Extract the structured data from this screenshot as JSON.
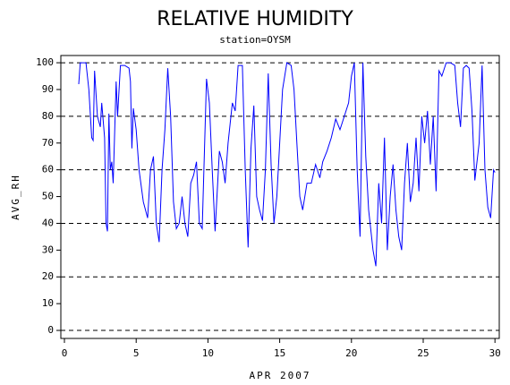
{
  "chart_data": {
    "type": "line",
    "title": "RELATIVE HUMIDITY",
    "subtitle": "station=OYSM",
    "x_label": "APR 2007",
    "y_label": "AVG_RH",
    "xlim": [
      -0.25,
      30.3
    ],
    "ylim": [
      -3,
      102.7
    ],
    "xticks": [
      0,
      5,
      10,
      15,
      20,
      25,
      30
    ],
    "yticks": [
      0,
      10,
      20,
      30,
      40,
      50,
      60,
      70,
      80,
      90,
      100
    ],
    "grid_lines": [
      0,
      20,
      40,
      60,
      80,
      100
    ],
    "grid": true,
    "series": [
      {
        "color": "#0000ff",
        "x": [
          1.0,
          1.1,
          1.5,
          1.7,
          1.9,
          2.0,
          2.1,
          2.3,
          2.5,
          2.6,
          2.8,
          2.9,
          3.0,
          3.1,
          3.2,
          3.3,
          3.4,
          3.6,
          3.7,
          3.9,
          4.2,
          4.5,
          4.6,
          4.7,
          4.8,
          5.0,
          5.2,
          5.5,
          5.8,
          6.0,
          6.2,
          6.4,
          6.6,
          6.8,
          7.0,
          7.2,
          7.4,
          7.6,
          7.8,
          8.0,
          8.2,
          8.4,
          8.6,
          8.8,
          9.0,
          9.2,
          9.4,
          9.6,
          9.9,
          10.1,
          10.3,
          10.5,
          10.8,
          11.0,
          11.2,
          11.4,
          11.7,
          11.9,
          12.1,
          12.4,
          12.6,
          12.8,
          13.0,
          13.2,
          13.4,
          13.6,
          13.8,
          14.0,
          14.2,
          14.4,
          14.6,
          14.8,
          15.0,
          15.2,
          15.5,
          15.8,
          16.0,
          16.2,
          16.4,
          16.6,
          16.9,
          17.2,
          17.5,
          17.8,
          18.0,
          18.3,
          18.6,
          18.9,
          19.2,
          19.5,
          19.8,
          20.0,
          20.2,
          20.4,
          20.6,
          20.8,
          21.0,
          21.2,
          21.5,
          21.7,
          21.9,
          22.1,
          22.3,
          22.5,
          22.7,
          22.9,
          23.1,
          23.3,
          23.5,
          23.7,
          23.9,
          24.1,
          24.3,
          24.5,
          24.7,
          24.9,
          25.1,
          25.3,
          25.5,
          25.7,
          25.9,
          26.1,
          26.3,
          26.6,
          26.9,
          27.2,
          27.4,
          27.6,
          27.8,
          28.0,
          28.2,
          28.4,
          28.6,
          28.9,
          29.1,
          29.3,
          29.5,
          29.7,
          29.9,
          30.0
        ],
        "values": [
          92,
          100,
          100,
          90,
          72,
          71,
          97,
          80,
          76,
          85,
          72,
          40,
          37,
          81,
          60,
          63,
          55,
          93,
          80,
          99,
          99,
          98,
          93,
          68,
          83,
          75,
          60,
          48,
          42,
          60,
          65,
          40,
          33,
          60,
          75,
          98,
          80,
          48,
          38,
          40,
          50,
          40,
          35,
          55,
          58,
          63,
          40,
          38,
          94,
          85,
          60,
          37,
          67,
          63,
          55,
          70,
          85,
          82,
          99,
          99,
          60,
          31,
          68,
          84,
          50,
          45,
          41,
          60,
          96,
          62,
          40,
          50,
          70,
          90,
          100,
          99,
          90,
          70,
          50,
          45,
          55,
          55,
          62,
          57,
          63,
          67,
          72,
          79,
          75,
          80,
          85,
          95,
          100,
          60,
          35,
          100,
          65,
          45,
          30,
          24,
          55,
          40,
          72,
          30,
          50,
          62,
          45,
          35,
          30,
          55,
          70,
          48,
          55,
          72,
          52,
          80,
          70,
          82,
          62,
          80,
          52,
          97,
          95,
          100,
          100,
          99,
          85,
          76,
          98,
          99,
          98,
          82,
          56,
          70,
          99,
          60,
          46,
          42,
          60,
          59
        ]
      }
    ]
  }
}
